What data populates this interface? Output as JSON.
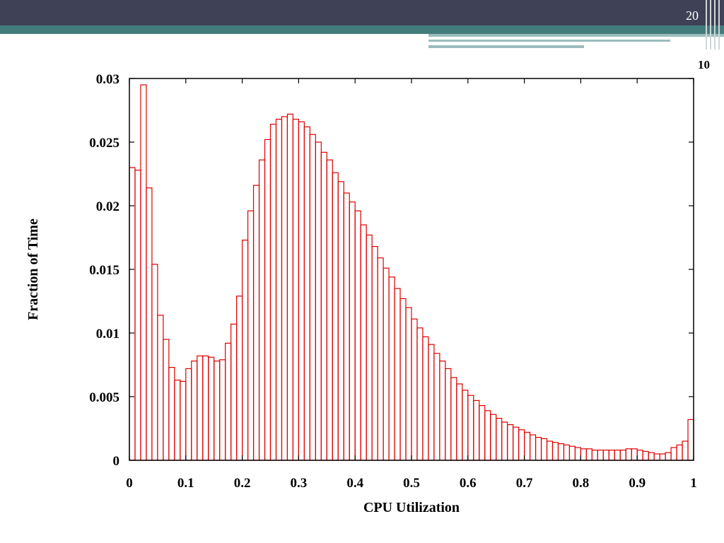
{
  "slide": {
    "number": "20",
    "page_label": "10"
  },
  "colors": {
    "topbar": "#3f4156",
    "accent": "#447c7c",
    "bar": "#dd0000"
  },
  "chart_data": {
    "type": "bar",
    "xlabel": "CPU Utilization",
    "ylabel": "Fraction of Time",
    "xlim": [
      0,
      1
    ],
    "ylim": [
      0,
      0.03
    ],
    "xticks": [
      "0",
      "0.1",
      "0.2",
      "0.3",
      "0.4",
      "0.5",
      "0.6",
      "0.7",
      "0.8",
      "0.9",
      "1"
    ],
    "yticks": [
      "0",
      "0.005",
      "0.01",
      "0.015",
      "0.02",
      "0.025",
      "0.03"
    ],
    "bin_width": 0.01,
    "values": [
      0.023,
      0.0228,
      0.0295,
      0.0214,
      0.0154,
      0.0114,
      0.0095,
      0.0073,
      0.0063,
      0.0062,
      0.0072,
      0.0078,
      0.0082,
      0.0082,
      0.0081,
      0.0078,
      0.0079,
      0.0092,
      0.0107,
      0.0129,
      0.0173,
      0.0196,
      0.0216,
      0.0236,
      0.0252,
      0.0264,
      0.0268,
      0.027,
      0.0272,
      0.0268,
      0.0266,
      0.0262,
      0.0256,
      0.025,
      0.0242,
      0.0236,
      0.0226,
      0.0219,
      0.021,
      0.0203,
      0.0196,
      0.0185,
      0.0177,
      0.0168,
      0.0159,
      0.0151,
      0.0144,
      0.0135,
      0.0127,
      0.012,
      0.0111,
      0.0104,
      0.0097,
      0.0091,
      0.0084,
      0.0078,
      0.0072,
      0.0065,
      0.006,
      0.0055,
      0.0051,
      0.0047,
      0.0043,
      0.0039,
      0.0036,
      0.0033,
      0.003,
      0.0028,
      0.0026,
      0.0024,
      0.0022,
      0.002,
      0.0018,
      0.0017,
      0.0015,
      0.0014,
      0.0013,
      0.0012,
      0.0011,
      0.001,
      0.0009,
      0.0009,
      0.0008,
      0.0008,
      0.0008,
      0.0008,
      0.0008,
      0.0008,
      0.0009,
      0.0009,
      0.0008,
      0.0007,
      0.0006,
      0.0005,
      0.0005,
      0.0006,
      0.001,
      0.0012,
      0.0015,
      0.0032
    ]
  }
}
